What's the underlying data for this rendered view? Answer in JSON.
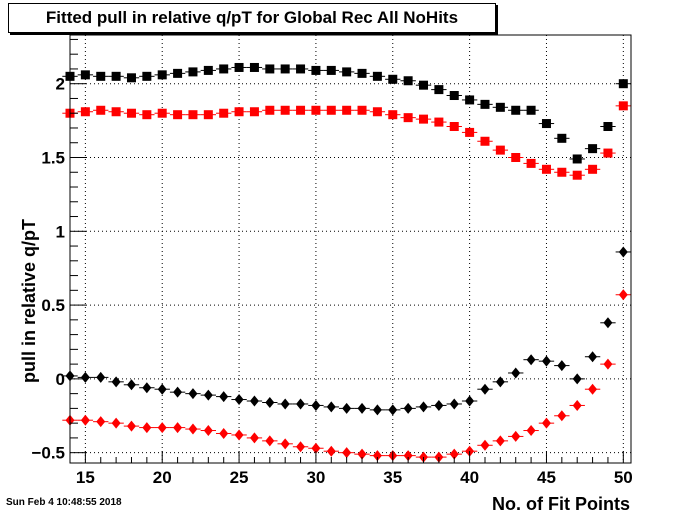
{
  "chart_data": {
    "type": "scatter",
    "title": "Fitted pull in relative q/pT  for Global Rec All NoHits",
    "xlabel": "No. of Fit Points",
    "ylabel": "pull in relative q/pT",
    "xlim": [
      14,
      50.5
    ],
    "ylim": [
      -0.57,
      2.33
    ],
    "x_ticks": [
      15,
      20,
      25,
      30,
      35,
      40,
      45,
      50
    ],
    "y_ticks": [
      -0.5,
      0,
      0.5,
      1,
      1.5,
      2
    ],
    "y_tick_labels": [
      "−0.5",
      "0",
      "0.5",
      "1",
      "1.5",
      "2"
    ],
    "grid": true,
    "x": [
      14,
      15,
      16,
      17,
      18,
      19,
      20,
      21,
      22,
      23,
      24,
      25,
      26,
      27,
      28,
      29,
      30,
      31,
      32,
      33,
      34,
      35,
      36,
      37,
      38,
      39,
      40,
      41,
      42,
      43,
      44,
      45,
      46,
      47,
      48,
      49,
      50
    ],
    "series": [
      {
        "marker": "square",
        "color": "#000000",
        "values": [
          2.05,
          2.06,
          2.05,
          2.05,
          2.04,
          2.05,
          2.06,
          2.07,
          2.08,
          2.09,
          2.1,
          2.11,
          2.11,
          2.1,
          2.1,
          2.1,
          2.09,
          2.09,
          2.08,
          2.07,
          2.05,
          2.03,
          2.02,
          1.99,
          1.96,
          1.92,
          1.89,
          1.86,
          1.84,
          1.82,
          1.82,
          1.73,
          1.63,
          1.49,
          1.56,
          1.71,
          2.0
        ]
      },
      {
        "marker": "square",
        "color": "#ff0000",
        "values": [
          1.8,
          1.81,
          1.82,
          1.81,
          1.8,
          1.79,
          1.8,
          1.79,
          1.79,
          1.79,
          1.8,
          1.81,
          1.81,
          1.82,
          1.82,
          1.82,
          1.82,
          1.82,
          1.82,
          1.82,
          1.81,
          1.79,
          1.77,
          1.76,
          1.74,
          1.71,
          1.67,
          1.61,
          1.55,
          1.5,
          1.46,
          1.42,
          1.4,
          1.38,
          1.42,
          1.53,
          1.85
        ]
      },
      {
        "marker": "diamond",
        "color": "#000000",
        "values": [
          0.02,
          0.01,
          0.01,
          -0.02,
          -0.04,
          -0.06,
          -0.07,
          -0.09,
          -0.1,
          -0.11,
          -0.12,
          -0.14,
          -0.15,
          -0.16,
          -0.17,
          -0.17,
          -0.18,
          -0.19,
          -0.2,
          -0.2,
          -0.21,
          -0.21,
          -0.2,
          -0.19,
          -0.18,
          -0.17,
          -0.15,
          -0.07,
          -0.02,
          0.04,
          0.13,
          0.12,
          0.09,
          0.0,
          0.15,
          0.38,
          0.86
        ]
      },
      {
        "marker": "diamond",
        "color": "#ff0000",
        "values": [
          -0.28,
          -0.28,
          -0.29,
          -0.3,
          -0.32,
          -0.33,
          -0.33,
          -0.33,
          -0.34,
          -0.35,
          -0.37,
          -0.38,
          -0.4,
          -0.42,
          -0.44,
          -0.46,
          -0.47,
          -0.49,
          -0.5,
          -0.51,
          -0.52,
          -0.52,
          -0.52,
          -0.53,
          -0.53,
          -0.51,
          -0.49,
          -0.45,
          -0.42,
          -0.39,
          -0.35,
          -0.3,
          -0.25,
          -0.18,
          -0.07,
          0.1,
          0.57
        ]
      }
    ]
  },
  "timestamp": "Sun Feb  4 10:48:55 2018"
}
